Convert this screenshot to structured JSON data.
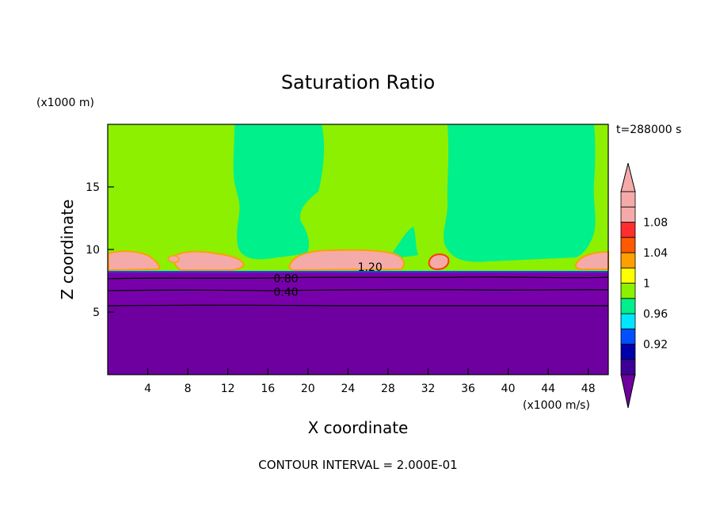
{
  "chart_data": {
    "type": "contour",
    "title": "Saturation Ratio",
    "xlabel": "X coordinate",
    "ylabel": "Z coordinate",
    "x_unit": "(x1000 m/s)",
    "y_unit": "(x1000 m)",
    "time_label": "t=288000 s",
    "footer": "CONTOUR INTERVAL = 2.000E-01",
    "xlim": [
      0,
      50
    ],
    "ylim": [
      0,
      20
    ],
    "x_ticks": [
      4,
      8,
      12,
      16,
      20,
      24,
      28,
      32,
      36,
      40,
      44,
      48
    ],
    "y_ticks": [
      5,
      10,
      15
    ],
    "contour_labels": [
      {
        "text": "0.80",
        "x": 17.8,
        "z": 7.7
      },
      {
        "text": "0.40",
        "x": 17.8,
        "z": 6.6
      },
      {
        "text": "1.20",
        "x": 26.2,
        "z": 8.6
      }
    ],
    "colorbar": {
      "levels": [
        0.92,
        0.96,
        1,
        1.04,
        1.08
      ],
      "colors": [
        "#3c0096",
        "#0000aa",
        "#0050ff",
        "#00e6ff",
        "#00f08c",
        "#8cf000",
        "#ffff00",
        "#ffa000",
        "#ff5a00",
        "#ff2d2d",
        "#f5aaaa",
        "#f5aaaa"
      ],
      "under_color": "#6e00a0",
      "over_color": "#f5aaaa"
    },
    "field_colors": {
      "dry": "#7800aa",
      "very_dry": "#6e00a0",
      "near_one": "#00f08c",
      "slightly_super": "#8cf000",
      "cloud": "#f5aaaa",
      "edge": "#ffa000",
      "deep_edge": "#ff3c00"
    }
  }
}
